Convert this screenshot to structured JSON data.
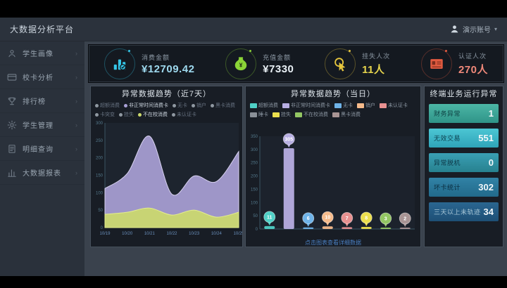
{
  "app_title": "大数据分析平台",
  "header": {
    "user_name": "演示账号"
  },
  "sidebar": {
    "items": [
      {
        "label": "学生画像",
        "icon": "user"
      },
      {
        "label": "校卡分析",
        "icon": "card"
      },
      {
        "label": "排行榜",
        "icon": "trophy"
      },
      {
        "label": "学生管理",
        "icon": "gear"
      },
      {
        "label": "明细查询",
        "icon": "doc"
      },
      {
        "label": "大数据报表",
        "icon": "chart"
      }
    ]
  },
  "kpis": [
    {
      "label": "消费金额",
      "value": "¥12709.42",
      "icon": "bar-chart",
      "color": "#35c6e8",
      "value_color": "#9ed9ee"
    },
    {
      "label": "充值金额",
      "value": "¥7330",
      "icon": "money-bag",
      "color": "#8bd437",
      "value_color": "#eaf1f6"
    },
    {
      "label": "挂失人次",
      "value": "11人",
      "icon": "hand-click",
      "color": "#e6c63e",
      "value_color": "#e6d44d"
    },
    {
      "label": "认证人次",
      "value": "270人",
      "icon": "id-card",
      "color": "#e25b40",
      "value_color": "#f0897a"
    }
  ],
  "chart_data": [
    {
      "type": "area",
      "title": "异常数据趋势（近7天）",
      "categories": [
        "10/19",
        "10/20",
        "10/21",
        "10/22",
        "10/23",
        "10/24",
        "10/25"
      ],
      "series": [
        {
          "name": "非正常时间消费卡",
          "values": [
            112,
            155,
            262,
            96,
            148,
            132,
            218
          ],
          "color": "#a9a1d6",
          "stroke": "#d8d2f0"
        },
        {
          "name": "不在校消费",
          "values": [
            38,
            44,
            56,
            36,
            50,
            30,
            44
          ],
          "color": "#ccd96d",
          "stroke": "#e4ee8d"
        }
      ],
      "ylim": [
        0,
        300
      ],
      "yticks": [
        0,
        50,
        100,
        150,
        200,
        250,
        300
      ],
      "grid": false,
      "legend_position": "top",
      "legend": [
        {
          "label": "超额消费",
          "active": false
        },
        {
          "label": "非正常时间消费卡",
          "active": true,
          "color": "#a9a1d6"
        },
        {
          "label": "无卡",
          "active": false
        },
        {
          "label": "销户",
          "active": false
        },
        {
          "label": "黑卡消费",
          "active": false
        },
        {
          "label": "卡突变",
          "active": false
        },
        {
          "label": "挂失",
          "active": false
        },
        {
          "label": "不在校消费",
          "active": true,
          "color": "#ccd96d"
        },
        {
          "label": "未认证卡",
          "active": false
        }
      ]
    },
    {
      "type": "bar",
      "title": "异常数据趋势（当日）",
      "categories": [
        "超额消费",
        "非正常时间消费卡",
        "无卡",
        "销户",
        "未认证卡",
        "挂失",
        "不在校消费",
        "黑卡消费"
      ],
      "values": [
        11,
        305,
        6,
        10,
        7,
        8,
        3,
        2
      ],
      "colors": [
        "#4fd0c6",
        "#b7aee2",
        "#6fb3e8",
        "#f6bb8b",
        "#e89191",
        "#ecdf4e",
        "#93c663",
        "#a89494"
      ],
      "ylim": [
        0,
        350
      ],
      "yticks": [
        0,
        50,
        100,
        150,
        200,
        250,
        300,
        350
      ],
      "grid": false,
      "legend_position": "top",
      "legend": [
        {
          "label": "超额消费",
          "color": "#4fd0c6"
        },
        {
          "label": "非正常时间消费卡",
          "color": "#b7aee2"
        },
        {
          "label": "无卡",
          "color": "#6fb3e8"
        },
        {
          "label": "销户",
          "color": "#f6bb8b"
        },
        {
          "label": "未认证卡",
          "color": "#e89191"
        },
        {
          "label": "睡卡",
          "color": "#8a9098"
        },
        {
          "label": "挂失",
          "color": "#ecdf4e"
        },
        {
          "label": "不在校消费",
          "color": "#93c663"
        },
        {
          "label": "黑卡消费",
          "color": "#a89494"
        }
      ],
      "footer_link": "点击图表查看详细数据"
    }
  ],
  "right_panel": {
    "title": "终端业务运行异常",
    "rows": [
      {
        "label": "财务异常",
        "value": "1",
        "bg_top": "#4cb6a6",
        "bg_bottom": "#2f9488",
        "label_color": "#0d3f41"
      },
      {
        "label": "无效交易",
        "value": "551",
        "bg_top": "#4cc6d4",
        "bg_bottom": "#2fa4b8",
        "label_color": "#0d4250"
      },
      {
        "label": "异常脱机",
        "value": "0",
        "bg_top": "#3a9fb4",
        "bg_bottom": "#27818f",
        "label_color": "#0c3544"
      },
      {
        "label": "坏卡统计",
        "value": "302",
        "bg_top": "#3182a6",
        "bg_bottom": "#226a8b",
        "label_color": "#0a2c3e"
      },
      {
        "label": "三天以上未轨迹",
        "value": "34",
        "bg_top": "#2a6690",
        "bg_bottom": "#1e4f76",
        "label_color": "#a9c6d6"
      }
    ]
  }
}
